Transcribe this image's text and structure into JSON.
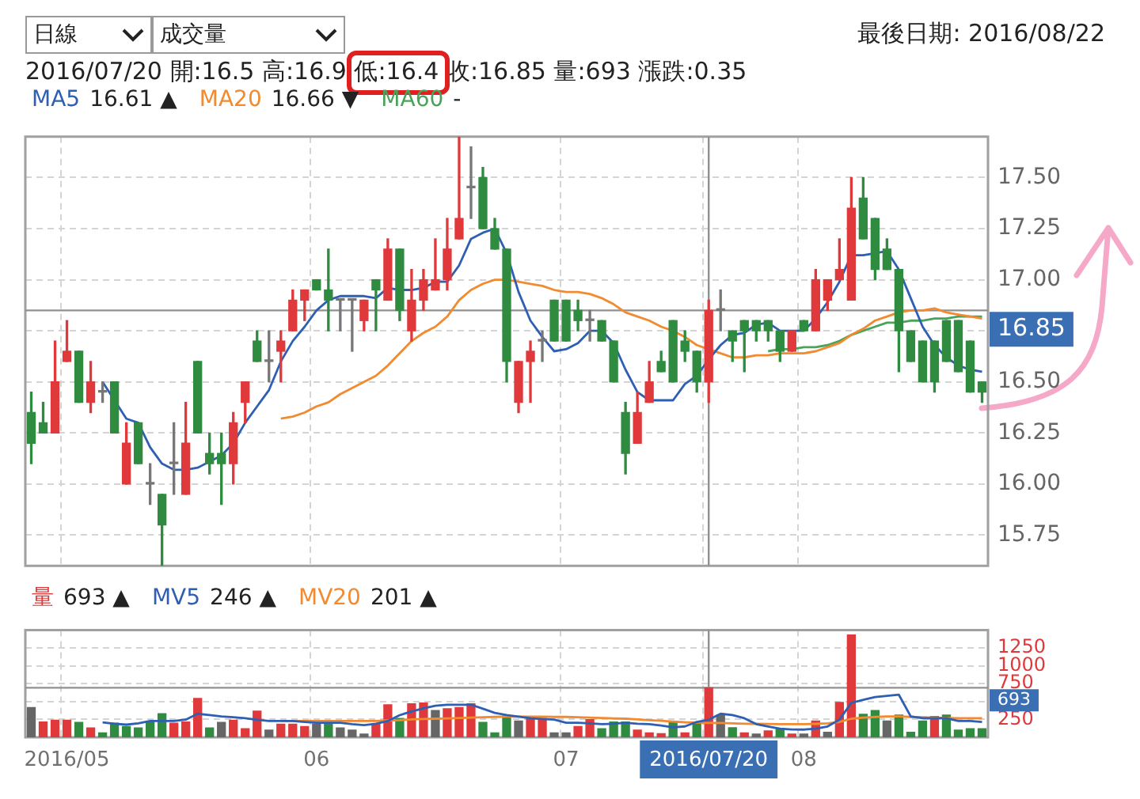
{
  "chart_data": [
    {
      "type": "candlestick",
      "title": "最後日期: 2016/08/22",
      "subtitle": "2016/07/20 開:16.5 高:16.9 低:16.4 收:16.85 量:693 漲跌:0.35",
      "annotations": [
        "16.61 ▲",
        "16.66 ▼",
        "-",
        "日線",
        "成交量"
      ],
      "categories": [
        null,
        null,
        null,
        "2016/05",
        null,
        null,
        null,
        null,
        null,
        null,
        null,
        null,
        null,
        null,
        null,
        null,
        null,
        null,
        null,
        null,
        null,
        null,
        null,
        null,
        "06",
        null,
        null,
        null,
        null,
        null,
        null,
        null,
        null,
        null,
        null,
        null,
        null,
        null,
        null,
        null,
        null,
        null,
        null,
        null,
        null,
        "07",
        null,
        null,
        null,
        null,
        null,
        null,
        null,
        null,
        null,
        null,
        null,
        "2016/07/20",
        null,
        null,
        null,
        null,
        null,
        null,
        null,
        "08",
        null,
        null,
        null,
        null,
        null,
        null,
        null,
        null,
        null,
        null,
        null,
        null,
        null,
        null,
        null
      ],
      "ohlc": [
        [
          16.35,
          16.45,
          16.1,
          16.2
        ],
        [
          16.3,
          16.4,
          16.25,
          16.25
        ],
        [
          16.25,
          16.7,
          16.25,
          16.5
        ],
        [
          16.6,
          16.8,
          16.6,
          16.65
        ],
        [
          16.65,
          16.65,
          16.4,
          16.4
        ],
        [
          16.4,
          16.6,
          16.35,
          16.5
        ],
        [
          16.45,
          16.5,
          16.4,
          16.45
        ],
        [
          16.5,
          16.5,
          16.25,
          16.25
        ],
        [
          16.0,
          16.3,
          16.0,
          16.2
        ],
        [
          16.3,
          16.3,
          16.1,
          16.1
        ],
        [
          16.0,
          16.1,
          15.9,
          16.0
        ],
        [
          15.95,
          15.95,
          15.6,
          15.8
        ],
        [
          16.1,
          16.3,
          15.95,
          16.1
        ],
        [
          15.95,
          16.4,
          15.95,
          16.2
        ],
        [
          16.6,
          16.6,
          16.25,
          16.25
        ],
        [
          16.15,
          16.25,
          16.05,
          16.1
        ],
        [
          16.15,
          16.25,
          15.9,
          16.1
        ],
        [
          16.1,
          16.35,
          16.0,
          16.3
        ],
        [
          16.4,
          16.5,
          16.3,
          16.5
        ],
        [
          16.7,
          16.75,
          16.6,
          16.6
        ],
        [
          16.6,
          16.75,
          16.5,
          16.6
        ],
        [
          16.65,
          16.75,
          16.5,
          16.7
        ],
        [
          16.75,
          16.95,
          16.75,
          16.9
        ],
        [
          16.9,
          16.95,
          16.8,
          16.95
        ],
        [
          17.0,
          17.0,
          16.95,
          16.95
        ],
        [
          16.95,
          17.15,
          16.75,
          16.9
        ],
        [
          16.9,
          16.9,
          16.75,
          16.9
        ],
        [
          16.9,
          16.9,
          16.65,
          16.9
        ],
        [
          16.8,
          16.9,
          16.75,
          16.9
        ],
        [
          17.0,
          17.0,
          16.75,
          16.95
        ],
        [
          16.9,
          17.2,
          16.9,
          17.15
        ],
        [
          17.15,
          17.15,
          16.8,
          16.85
        ],
        [
          16.75,
          17.05,
          16.7,
          16.9
        ],
        [
          16.9,
          17.05,
          16.85,
          17.0
        ],
        [
          16.95,
          17.2,
          16.95,
          17.0
        ],
        [
          17.0,
          17.3,
          16.95,
          17.15
        ],
        [
          17.2,
          17.7,
          17.2,
          17.3
        ],
        [
          17.45,
          17.65,
          17.3,
          17.45
        ],
        [
          17.5,
          17.55,
          17.25,
          17.25
        ],
        [
          17.25,
          17.3,
          17.15,
          17.15
        ],
        [
          17.15,
          17.15,
          16.5,
          16.6
        ],
        [
          16.4,
          16.6,
          16.35,
          16.6
        ],
        [
          16.6,
          16.7,
          16.4,
          16.65
        ],
        [
          16.7,
          16.75,
          16.6,
          16.7
        ],
        [
          16.9,
          16.9,
          16.7,
          16.7
        ],
        [
          16.9,
          16.9,
          16.7,
          16.7
        ],
        [
          16.85,
          16.9,
          16.75,
          16.8
        ],
        [
          16.8,
          16.85,
          16.7,
          16.8
        ],
        [
          16.8,
          16.8,
          16.7,
          16.7
        ],
        [
          16.7,
          16.7,
          16.5,
          16.5
        ],
        [
          16.35,
          16.4,
          16.05,
          16.15
        ],
        [
          16.2,
          16.45,
          16.2,
          16.35
        ],
        [
          16.4,
          16.6,
          16.4,
          16.5
        ],
        [
          16.6,
          16.65,
          16.55,
          16.55
        ],
        [
          16.8,
          16.8,
          16.5,
          16.5
        ],
        [
          16.7,
          16.75,
          16.6,
          16.65
        ],
        [
          16.65,
          16.65,
          16.45,
          16.5
        ],
        [
          16.5,
          16.9,
          16.4,
          16.85
        ],
        [
          16.85,
          16.95,
          16.75,
          16.85
        ],
        [
          16.75,
          16.75,
          16.6,
          16.7
        ],
        [
          16.8,
          16.8,
          16.55,
          16.75
        ],
        [
          16.8,
          16.8,
          16.7,
          16.75
        ],
        [
          16.8,
          16.8,
          16.7,
          16.75
        ],
        [
          16.75,
          16.75,
          16.6,
          16.65
        ],
        [
          16.65,
          16.75,
          16.65,
          16.75
        ],
        [
          16.8,
          16.8,
          16.75,
          16.75
        ],
        [
          16.75,
          17.05,
          16.75,
          17.0
        ],
        [
          16.9,
          17.0,
          16.85,
          17.0
        ],
        [
          17.0,
          17.2,
          17.0,
          17.05
        ],
        [
          16.9,
          17.5,
          16.9,
          17.35
        ],
        [
          17.4,
          17.5,
          17.2,
          17.2
        ],
        [
          17.3,
          17.3,
          17.0,
          17.05
        ],
        [
          17.15,
          17.2,
          17.05,
          17.05
        ],
        [
          17.05,
          17.05,
          16.55,
          16.75
        ],
        [
          16.75,
          16.75,
          16.6,
          16.6
        ],
        [
          16.7,
          16.7,
          16.5,
          16.5
        ],
        [
          16.7,
          16.7,
          16.45,
          16.5
        ],
        [
          16.8,
          16.8,
          16.6,
          16.6
        ],
        [
          16.8,
          16.8,
          16.55,
          16.55
        ],
        [
          16.7,
          16.7,
          16.45,
          16.45
        ],
        [
          16.5,
          16.5,
          16.4,
          16.45
        ]
      ],
      "colors": [
        "#2e8b3f",
        "#2e8b3f",
        "#e0393b",
        "#e0393b",
        "#2e8b3f",
        "#e0393b",
        "#777777",
        "#2e8b3f",
        "#e0393b",
        "#2e8b3f",
        "#777777",
        "#2e8b3f",
        "#777777",
        "#e0393b",
        "#2e8b3f",
        "#2e8b3f",
        "#2e8b3f",
        "#e0393b",
        "#e0393b",
        "#2e8b3f",
        "#777777",
        "#e0393b",
        "#e0393b",
        "#e0393b",
        "#2e8b3f",
        "#2e8b3f",
        "#777777",
        "#777777",
        "#e0393b",
        "#2e8b3f",
        "#e0393b",
        "#2e8b3f",
        "#e0393b",
        "#e0393b",
        "#e0393b",
        "#e0393b",
        "#e0393b",
        "#777777",
        "#2e8b3f",
        "#2e8b3f",
        "#2e8b3f",
        "#e0393b",
        "#e0393b",
        "#777777",
        "#2e8b3f",
        "#2e8b3f",
        "#2e8b3f",
        "#777777",
        "#2e8b3f",
        "#2e8b3f",
        "#2e8b3f",
        "#e0393b",
        "#e0393b",
        "#2e8b3f",
        "#2e8b3f",
        "#2e8b3f",
        "#2e8b3f",
        "#e0393b",
        "#777777",
        "#2e8b3f",
        "#2e8b3f",
        "#2e8b3f",
        "#2e8b3f",
        "#2e8b3f",
        "#e0393b",
        "#2e8b3f",
        "#e0393b",
        "#e0393b",
        "#e0393b",
        "#e0393b",
        "#2e8b3f",
        "#2e8b3f",
        "#2e8b3f",
        "#2e8b3f",
        "#2e8b3f",
        "#2e8b3f",
        "#2e8b3f",
        "#2e8b3f",
        "#2e8b3f",
        "#2e8b3f",
        "#2e8b3f"
      ],
      "series": [
        {
          "name": "MA5",
          "type": "line",
          "color": "#2f5fb3",
          "values": [
            null,
            null,
            null,
            null,
            null,
            null,
            16.5,
            16.41,
            16.32,
            16.3,
            16.18,
            16.1,
            16.07,
            16.07,
            16.08,
            16.11,
            16.14,
            16.2,
            16.3,
            16.38,
            16.46,
            16.6,
            16.7,
            16.77,
            16.85,
            16.9,
            16.92,
            16.92,
            16.92,
            16.91,
            16.96,
            16.95,
            16.95,
            16.96,
            16.99,
            16.99,
            17.07,
            17.2,
            17.23,
            17.25,
            17.13,
            16.94,
            16.8,
            16.72,
            16.65,
            16.66,
            16.69,
            16.75,
            16.75,
            16.69,
            16.56,
            16.45,
            16.41,
            16.41,
            16.41,
            16.49,
            16.53,
            16.61,
            16.68,
            16.73,
            16.74,
            16.78,
            16.79,
            16.75,
            16.75,
            16.75,
            16.81,
            16.89,
            16.99,
            17.12,
            17.12,
            17.13,
            17.14,
            17.05,
            16.91,
            16.77,
            16.68,
            16.62,
            16.58,
            16.56,
            16.55
          ]
        },
        {
          "name": "MA20",
          "type": "line",
          "color": "#f28a30",
          "values": [
            null,
            null,
            null,
            null,
            null,
            null,
            null,
            null,
            null,
            null,
            null,
            null,
            null,
            null,
            null,
            null,
            null,
            null,
            null,
            null,
            null,
            16.32,
            16.33,
            16.35,
            16.38,
            16.4,
            16.44,
            16.47,
            16.5,
            16.53,
            16.58,
            16.64,
            16.7,
            16.74,
            16.77,
            16.82,
            16.9,
            16.95,
            16.98,
            17.0,
            17.0,
            16.99,
            16.98,
            16.97,
            16.95,
            16.94,
            16.94,
            16.93,
            16.91,
            16.88,
            16.84,
            16.82,
            16.8,
            16.77,
            16.75,
            16.72,
            16.68,
            16.66,
            16.64,
            16.62,
            16.62,
            16.63,
            16.63,
            16.64,
            16.64,
            16.64,
            16.65,
            16.67,
            16.69,
            16.73,
            16.76,
            16.8,
            16.82,
            16.84,
            16.85,
            16.85,
            16.86,
            16.84,
            16.83,
            16.82,
            16.81
          ]
        },
        {
          "name": "MA60",
          "type": "line",
          "color": "#4aa35a",
          "values": [
            null,
            null,
            null,
            null,
            null,
            null,
            null,
            null,
            null,
            null,
            null,
            null,
            null,
            null,
            null,
            null,
            null,
            null,
            null,
            null,
            null,
            null,
            null,
            null,
            null,
            null,
            null,
            null,
            null,
            null,
            null,
            null,
            null,
            null,
            null,
            null,
            null,
            null,
            null,
            null,
            null,
            null,
            null,
            null,
            null,
            null,
            null,
            null,
            null,
            null,
            null,
            null,
            null,
            null,
            null,
            null,
            null,
            null,
            null,
            null,
            null,
            null,
            16.65,
            16.66,
            16.66,
            16.67,
            16.67,
            16.68,
            16.7,
            16.73,
            16.75,
            16.77,
            16.79,
            16.79,
            16.8,
            16.8,
            16.81,
            16.81,
            16.82,
            16.82,
            16.82
          ]
        }
      ],
      "ylim": [
        15.6,
        17.7
      ],
      "yticks": [
        {
          "value": 15.75,
          "label": "15.75"
        },
        {
          "value": 16,
          "label": "16.00"
        },
        {
          "value": 16.25,
          "label": "16.25"
        },
        {
          "value": 16.5,
          "label": "16.50"
        },
        {
          "value": 16.75,
          "label": null
        },
        {
          "value": 17,
          "label": "17.00"
        },
        {
          "value": 17.25,
          "label": "17.25"
        },
        {
          "value": 17.5,
          "label": "17.50"
        }
      ],
      "ref_lines": [
        {
          "axis": "y",
          "value": 16.85,
          "label": "16.85"
        },
        {
          "axis": "x",
          "value": "2016/07/20"
        }
      ],
      "grid": true,
      "legend": "top left",
      "tick_labels": "y"
    },
    {
      "type": "bar",
      "annotations": [
        "693 ▲",
        "246 ▲",
        "201 ▲"
      ],
      "categories": [
        null,
        null,
        null,
        "2016/05",
        null,
        null,
        null,
        null,
        null,
        null,
        null,
        null,
        null,
        null,
        null,
        null,
        null,
        null,
        null,
        null,
        null,
        null,
        null,
        null,
        "06",
        null,
        null,
        null,
        null,
        null,
        null,
        null,
        null,
        null,
        null,
        null,
        null,
        null,
        null,
        null,
        null,
        null,
        null,
        null,
        null,
        "07",
        null,
        null,
        null,
        null,
        null,
        null,
        null,
        null,
        null,
        null,
        null,
        "2016/07/20",
        null,
        null,
        null,
        null,
        null,
        null,
        null,
        "08",
        null,
        null,
        null,
        null,
        null,
        null,
        null,
        null,
        null,
        null,
        null,
        null,
        null,
        null,
        null
      ],
      "series": [
        {
          "name": "量",
          "type": "bar",
          "colors": [
            "#666666",
            "#e0393b",
            "#e0393b",
            "#e0393b",
            "#2e8b3f",
            "#e0393b",
            "#2e8b3f",
            "#2e8b3f",
            "#2e8b3f",
            "#2e8b3f",
            "#2e8b3f",
            "#2e8b3f",
            "#e0393b",
            "#e0393b",
            "#e0393b",
            "#2e8b3f",
            "#666666",
            "#e0393b",
            "#e0393b",
            "#e0393b",
            "#666666",
            "#e0393b",
            "#e0393b",
            "#e0393b",
            "#666666",
            "#2e8b3f",
            "#666666",
            "#666666",
            "#666666",
            "#e0393b",
            "#e0393b",
            "#2e8b3f",
            "#e0393b",
            "#e0393b",
            "#666666",
            "#e0393b",
            "#e0393b",
            "#e0393b",
            "#2e8b3f",
            "#2e8b3f",
            "#2e8b3f",
            "#666666",
            "#e0393b",
            "#e0393b",
            "#666666",
            "#666666",
            "#e0393b",
            "#e0393b",
            "#2e8b3f",
            "#2e8b3f",
            "#2e8b3f",
            "#e0393b",
            "#e0393b",
            "#e0393b",
            "#2e8b3f",
            "#e0393b",
            "#2e8b3f",
            "#e0393b",
            "#666666",
            "#2e8b3f",
            "#e0393b",
            "#666666",
            "#e0393b",
            "#2e8b3f",
            "#e0393b",
            "#666666",
            "#e0393b",
            "#666666",
            "#e0393b",
            "#e0393b",
            "#2e8b3f",
            "#2e8b3f",
            "#666666",
            "#2e8b3f",
            "#2e8b3f",
            "#2e8b3f",
            "#e0393b",
            "#2e8b3f",
            "#2e8b3f",
            "#2e8b3f",
            "#2e8b3f"
          ],
          "values": [
            417,
            215,
            240,
            240,
            208,
            132,
            63,
            196,
            151,
            132,
            215,
            329,
            196,
            215,
            544,
            132,
            208,
            240,
            120,
            367,
            101,
            183,
            183,
            151,
            183,
            202,
            132,
            101,
            44,
            183,
            455,
            265,
            467,
            480,
            373,
            398,
            417,
            467,
            208,
            63,
            296,
            227,
            265,
            265,
            63,
            63,
            151,
            246,
            120,
            215,
            215,
            101,
            63,
            50,
            202,
            63,
            202,
            693,
            310,
            133,
            63,
            44,
            89,
            120,
            44,
            44,
            228,
            70,
            487,
            1430,
            323,
            373,
            228,
            310,
            70,
            228,
            291,
            310,
            101,
            120,
            120
          ]
        },
        {
          "name": "MV5",
          "type": "line",
          "color": "#2f5fb3",
          "values": [
            null,
            null,
            null,
            null,
            null,
            null,
            209,
            190,
            177,
            195,
            228,
            228,
            228,
            247,
            329,
            310,
            291,
            280,
            266,
            245,
            228,
            228,
            228,
            215,
            203,
            203,
            203,
            185,
            171,
            190,
            228,
            310,
            360,
            405,
            440,
            456,
            456,
            456,
            400,
            342,
            310,
            290,
            266,
            255,
            247,
            203,
            203,
            196,
            184,
            190,
            203,
            190,
            184,
            165,
            139,
            152,
            215,
            246,
            329,
            310,
            266,
            184,
            152,
            120,
            110,
            108,
            120,
            152,
            247,
            481,
            525,
            563,
            580,
            595,
            291,
            266,
            266,
            266,
            228,
            228,
            215
          ]
        },
        {
          "name": "MV20",
          "type": "line",
          "color": "#f28a30",
          "values": [
            null,
            null,
            null,
            null,
            null,
            null,
            null,
            null,
            null,
            null,
            null,
            null,
            null,
            null,
            null,
            null,
            null,
            null,
            null,
            null,
            null,
            228,
            228,
            228,
            228,
            228,
            228,
            228,
            228,
            228,
            235,
            240,
            250,
            255,
            260,
            265,
            270,
            275,
            280,
            285,
            290,
            290,
            290,
            290,
            285,
            285,
            280,
            275,
            270,
            265,
            260,
            250,
            240,
            230,
            220,
            210,
            205,
            201,
            200,
            195,
            190,
            188,
            186,
            185,
            184,
            184,
            188,
            195,
            215,
            260,
            275,
            285,
            291,
            291,
            285,
            280,
            275,
            270,
            266,
            266,
            266
          ]
        }
      ],
      "ylim": [
        0,
        1500
      ],
      "yticks": [
        250,
        {
          "value": 500,
          "label": null
        },
        750,
        1000,
        1250
      ],
      "ref_lines": [
        {
          "axis": "y",
          "value": 693,
          "label": "693"
        },
        {
          "axis": "x",
          "value": "2016/07/20"
        }
      ],
      "grid": true,
      "legend": "top left"
    }
  ]
}
